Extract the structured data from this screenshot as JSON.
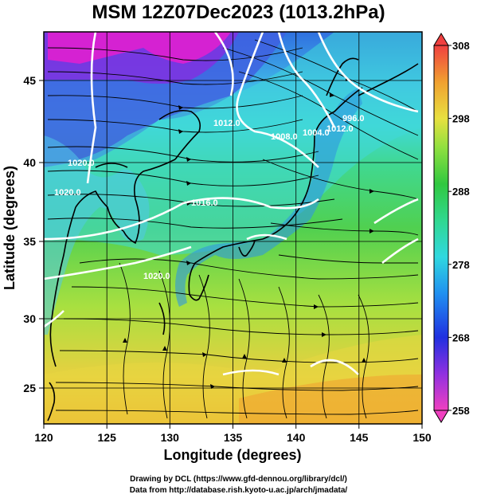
{
  "title": "MSM 12Z07Dec2023 (1013.2hPa)",
  "xlabel": "Longitude (degrees)",
  "ylabel": "Latitude  (degrees)",
  "xticks": [
    "120",
    "125",
    "130",
    "135",
    "140",
    "145",
    "150"
  ],
  "yticks": [
    "25",
    "30",
    "35",
    "40",
    "45"
  ],
  "colorbar": {
    "min": 258,
    "max": 308,
    "ticks": [
      "258",
      "268",
      "278",
      "288",
      "298",
      "308"
    ]
  },
  "contour_labels": [
    "1012.0",
    "1008.0",
    "1004.0",
    "1012.0",
    "996.0",
    "1016.0",
    "1020.0",
    "1020.0",
    "1020.0"
  ],
  "credits": {
    "line1": "Drawing by DCL (https://www.gfd-dennou.org/library/dcl/)",
    "line2": "Data from http://database.rish.kyoto-u.ac.jp/arch/jmadata/"
  },
  "colors": {
    "magenta": "#e020d0",
    "blue": "#2040e0",
    "cyan": "#30d8e0",
    "green": "#40d040",
    "yellow": "#e8e040",
    "orange": "#f0a030",
    "contour": "#ffffff",
    "streamline": "#000000"
  }
}
